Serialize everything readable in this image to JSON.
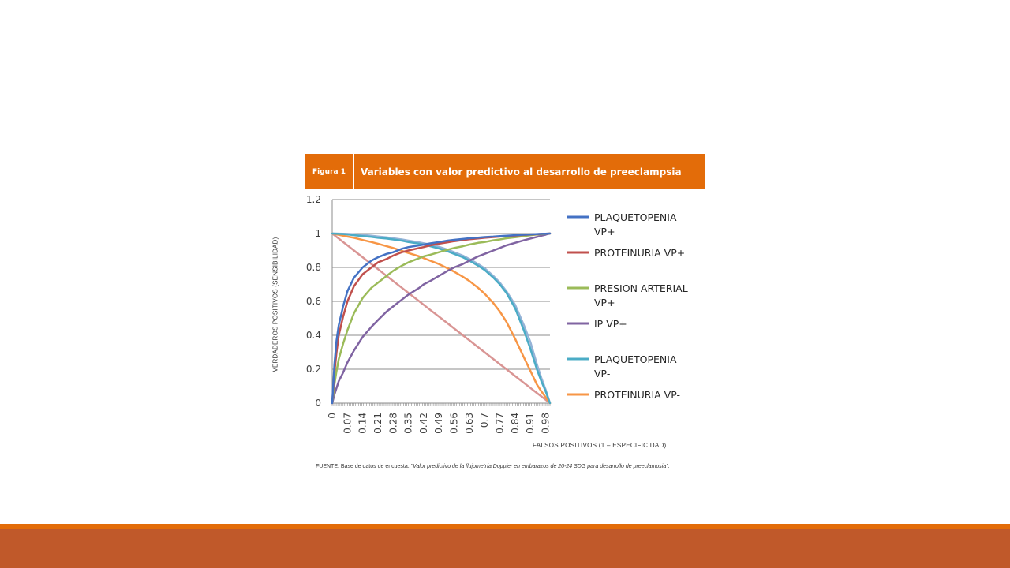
{
  "figure": {
    "number_label": "Figura 1",
    "title": "Variables con valor predictivo al desarrollo de preeclampsia"
  },
  "source_note": {
    "prefix": "FUENTE: Base de datos de encuesta: ",
    "text": "\"Valor predictivo de la flujometría Doppler en embarazos de 20-24 SDG para desarrollo de preeclampsia\"."
  },
  "chart_data": {
    "type": "line",
    "xlabel": "FALSOS POSITIVOS (1 – ESPECIFICIDAD)",
    "ylabel": "VERDADEROS POSITIVOS (SENSIBILIDAD)",
    "xlim": [
      0,
      1
    ],
    "ylim": [
      0,
      1.2
    ],
    "yticks": [
      "0",
      "0.2",
      "0.4",
      "0.6",
      "0.8",
      "1",
      "1.2"
    ],
    "x": [
      0,
      0.01,
      0.02,
      0.03,
      0.05,
      0.07,
      0.1,
      0.14,
      0.18,
      0.21,
      0.25,
      0.28,
      0.32,
      0.35,
      0.4,
      0.42,
      0.45,
      0.49,
      0.53,
      0.56,
      0.6,
      0.63,
      0.67,
      0.7,
      0.74,
      0.77,
      0.8,
      0.84,
      0.88,
      0.91,
      0.94,
      0.96,
      0.98,
      0.99,
      1.0
    ],
    "x_tick_labels": [
      "0",
      "0.07",
      "0.14",
      "0.21",
      "0.28",
      "0.35",
      "0.42",
      "0.49",
      "0.56",
      "0.63",
      "0.7",
      "0.77",
      "0.84",
      "0.91",
      "0.98"
    ],
    "grid": "horizontal",
    "legend_position": "right",
    "series": [
      {
        "name": "PLAQUETOPENIA VP+",
        "color": "#4472c4",
        "values": [
          0,
          0.228,
          0.37,
          0.46,
          0.57,
          0.66,
          0.74,
          0.8,
          0.84,
          0.86,
          0.88,
          0.89,
          0.91,
          0.92,
          0.93,
          0.935,
          0.942,
          0.95,
          0.958,
          0.963,
          0.968,
          0.972,
          0.976,
          0.979,
          0.982,
          0.985,
          0.987,
          0.99,
          0.993,
          0.995,
          0.997,
          0.998,
          0.999,
          0.9995,
          1.0
        ]
      },
      {
        "name": "PROTEINURIA VP+",
        "color": "#c0504d",
        "values": [
          0,
          0.18,
          0.3,
          0.4,
          0.51,
          0.6,
          0.69,
          0.76,
          0.8,
          0.83,
          0.85,
          0.87,
          0.89,
          0.9,
          0.915,
          0.92,
          0.93,
          0.94,
          0.948,
          0.955,
          0.962,
          0.966,
          0.971,
          0.975,
          0.979,
          0.982,
          0.985,
          0.988,
          0.992,
          0.994,
          0.996,
          0.998,
          0.999,
          0.9995,
          1.0
        ]
      },
      {
        "name": "PRESION ARTERIAL VP+",
        "color": "#9bbb59",
        "values": [
          0,
          0.11,
          0.19,
          0.26,
          0.35,
          0.43,
          0.53,
          0.62,
          0.68,
          0.71,
          0.75,
          0.78,
          0.81,
          0.83,
          0.855,
          0.865,
          0.875,
          0.89,
          0.905,
          0.915,
          0.925,
          0.935,
          0.945,
          0.95,
          0.96,
          0.965,
          0.972,
          0.978,
          0.985,
          0.99,
          0.994,
          0.996,
          0.998,
          0.999,
          1.0
        ]
      },
      {
        "name": "IP VP+",
        "color": "#8064a2",
        "values": [
          0,
          0.05,
          0.09,
          0.13,
          0.18,
          0.24,
          0.31,
          0.39,
          0.45,
          0.49,
          0.54,
          0.57,
          0.61,
          0.64,
          0.68,
          0.7,
          0.72,
          0.75,
          0.78,
          0.8,
          0.82,
          0.84,
          0.865,
          0.88,
          0.9,
          0.915,
          0.93,
          0.945,
          0.96,
          0.97,
          0.98,
          0.987,
          0.993,
          0.997,
          1.0
        ]
      },
      {
        "name": "PLAQUETOPENIA VP-",
        "color": "#4bacc6",
        "values": [
          1,
          0.9995,
          0.999,
          0.998,
          0.997,
          0.995,
          0.99,
          0.985,
          0.98,
          0.975,
          0.97,
          0.965,
          0.958,
          0.95,
          0.94,
          0.935,
          0.925,
          0.912,
          0.895,
          0.88,
          0.86,
          0.84,
          0.81,
          0.785,
          0.74,
          0.7,
          0.65,
          0.56,
          0.43,
          0.32,
          0.2,
          0.13,
          0.07,
          0.035,
          0
        ]
      },
      {
        "name": "PROTEINURIA VP-",
        "color": "#f79646",
        "values": [
          1,
          0.998,
          0.995,
          0.992,
          0.987,
          0.982,
          0.975,
          0.962,
          0.95,
          0.94,
          0.925,
          0.915,
          0.898,
          0.885,
          0.865,
          0.855,
          0.84,
          0.82,
          0.795,
          0.775,
          0.745,
          0.72,
          0.68,
          0.645,
          0.59,
          0.54,
          0.48,
          0.38,
          0.27,
          0.19,
          0.11,
          0.07,
          0.035,
          0.017,
          0
        ]
      },
      {
        "name": "",
        "color": "#d99594",
        "values": [
          1,
          0.99,
          0.98,
          0.97,
          0.95,
          0.93,
          0.9,
          0.86,
          0.82,
          0.79,
          0.75,
          0.72,
          0.68,
          0.65,
          0.6,
          0.58,
          0.55,
          0.51,
          0.47,
          0.44,
          0.4,
          0.37,
          0.33,
          0.3,
          0.26,
          0.23,
          0.2,
          0.16,
          0.12,
          0.09,
          0.06,
          0.04,
          0.02,
          0.01,
          0
        ]
      },
      {
        "name": "",
        "color": "#95b3d7",
        "values": [
          1,
          0.9999,
          0.9998,
          0.9996,
          0.999,
          0.998,
          0.996,
          0.992,
          0.987,
          0.983,
          0.977,
          0.972,
          0.965,
          0.958,
          0.948,
          0.943,
          0.935,
          0.922,
          0.905,
          0.89,
          0.87,
          0.85,
          0.82,
          0.795,
          0.75,
          0.71,
          0.66,
          0.58,
          0.46,
          0.36,
          0.23,
          0.15,
          0.08,
          0.04,
          0
        ]
      }
    ]
  }
}
